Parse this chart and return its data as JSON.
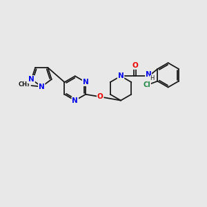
{
  "bg_color": "#e8e8e8",
  "bond_color": "#1a1a1a",
  "bond_width": 1.3,
  "atom_colors": {
    "N": "#0000ee",
    "O": "#ee0000",
    "Cl": "#228844",
    "C": "#1a1a1a"
  },
  "font_size": 7.5
}
